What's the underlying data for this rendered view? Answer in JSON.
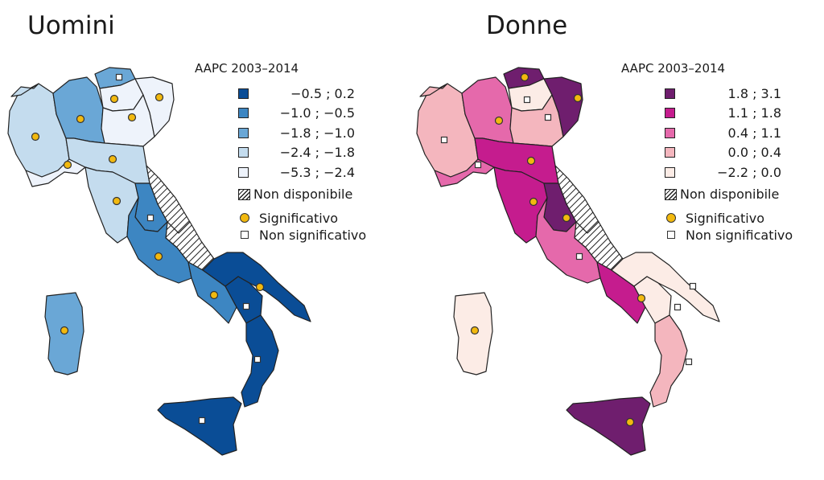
{
  "panels": [
    {
      "title": "Uomini",
      "legend": {
        "title": "AAPC 2003–2014",
        "classes": [
          {
            "range": "−0.5 ; 0.2",
            "color": "#0a4d96"
          },
          {
            "range": "−1.0 ; −0.5",
            "color": "#3d86c2"
          },
          {
            "range": "−1.8 ; −1.0",
            "color": "#6aa7d6"
          },
          {
            "range": "−2.4 ; −1.8",
            "color": "#c4dcee"
          },
          {
            "range": "−5.3 ; −2.4",
            "color": "#eef3fb"
          }
        ],
        "not_available": "Non disponibile",
        "significant": "Significativo",
        "not_significant": "Non significativo"
      }
    },
    {
      "title": "Donne",
      "legend": {
        "title": "AAPC 2003–2014",
        "classes": [
          {
            "range": "1.8 ; 3.1",
            "color": "#6f1e6e"
          },
          {
            "range": "1.1 ; 1.8",
            "color": "#c51c8e"
          },
          {
            "range": "0.4 ; 1.1",
            "color": "#e569ab"
          },
          {
            "range": "0.0 ; 0.4",
            "color": "#f4b6be"
          },
          {
            "range": "−2.2 ; 0.0",
            "color": "#fcece6"
          }
        ],
        "not_available": "Non disponibile",
        "significant": "Significativo",
        "not_significant": "Non significativo"
      }
    }
  ],
  "colors": {
    "significant_marker": "#f2b90f",
    "border": "#222222"
  }
}
